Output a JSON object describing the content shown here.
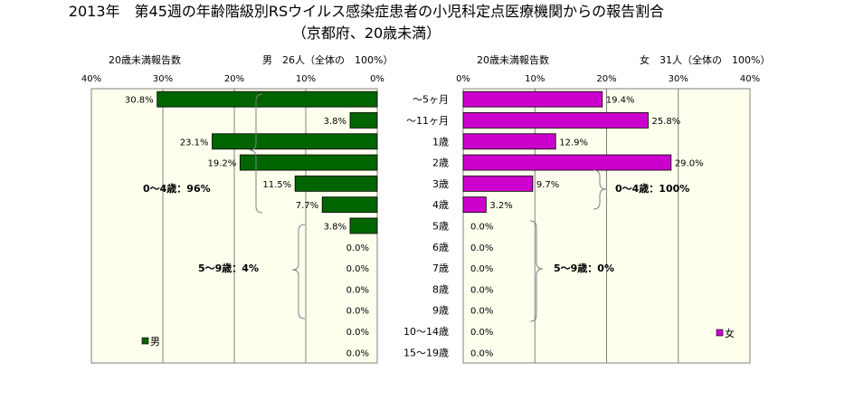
{
  "title": "2013年　第45週の年齢階級別RSウイルス感染症患者の小児科定点医療機関からの報告割合",
  "subtitle": "（京都府、20歳未満）",
  "age_categories": [
    "～5ヶ月",
    "～11ヶ月",
    "1歳",
    "2歳",
    "3歳",
    "4歳",
    "5歳",
    "6歳",
    "7歳",
    "8歳",
    "9歳",
    "10～14歳",
    "15～19歳"
  ],
  "colors": {
    "male": "#006400",
    "female": "#cc00cc",
    "plot_bg": "#ffffee",
    "grid": "#808080"
  },
  "chart_data": [
    {
      "type": "bar",
      "orientation": "horizontal-reversed",
      "panel_label": "20歳未満報告数",
      "total_label": "男　26人（全体の　100%）",
      "xlim": [
        0,
        40
      ],
      "ticks": [
        "40%",
        "30%",
        "20%",
        "10%",
        "0%"
      ],
      "series": [
        {
          "name": "男",
          "values": [
            30.8,
            3.8,
            23.1,
            19.2,
            11.5,
            7.7,
            3.8,
            0.0,
            0.0,
            0.0,
            0.0,
            0.0,
            0.0
          ]
        }
      ],
      "value_labels": [
        "30.8%",
        "3.8%",
        "23.1%",
        "19.2%",
        "11.5%",
        "7.7%",
        "3.8%",
        "0.0%",
        "0.0%",
        "0.0%",
        "0.0%",
        "0.0%",
        "0.0%"
      ],
      "annotations": [
        "0～4歳：96%",
        "5～9歳：4%"
      ],
      "legend": "bottom-left"
    },
    {
      "type": "bar",
      "orientation": "horizontal",
      "panel_label": "20歳未満報告数",
      "total_label": "女　31人（全体の　100%）",
      "xlim": [
        0,
        40
      ],
      "ticks": [
        "0%",
        "10%",
        "20%",
        "30%",
        "40%"
      ],
      "series": [
        {
          "name": "女",
          "values": [
            19.4,
            25.8,
            12.9,
            29.0,
            9.7,
            3.2,
            0.0,
            0.0,
            0.0,
            0.0,
            0.0,
            0.0,
            0.0
          ]
        }
      ],
      "value_labels": [
        "19.4%",
        "25.8%",
        "12.9%",
        "29.0%",
        "9.7%",
        "3.2%",
        "0.0%",
        "0.0%",
        "0.0%",
        "0.0%",
        "0.0%",
        "0.0%",
        "0.0%"
      ],
      "annotations": [
        "0～4歳：100%",
        "5～9歳：0%"
      ],
      "legend": "bottom-right"
    }
  ]
}
